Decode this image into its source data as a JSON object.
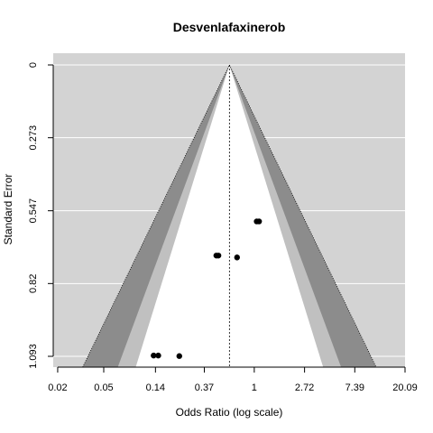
{
  "chart_data": {
    "type": "scatter",
    "title": "Desvenlafaxinerob",
    "xlabel": "Odds Ratio (log scale)",
    "ylabel": "Standard Error",
    "x_scale": "log",
    "x_ticks": [
      0.02,
      0.05,
      0.14,
      0.37,
      1,
      2.72,
      7.39,
      20.09
    ],
    "x_tick_labels": [
      "0.02",
      "0.05",
      "0.14",
      "0.37",
      "1",
      "2.72",
      "7.39",
      "20.09"
    ],
    "y_ticks": [
      0,
      0.273,
      0.547,
      0.82,
      1.093
    ],
    "y_tick_labels": [
      "0",
      "0.273",
      "0.547",
      "0.82",
      "1.093"
    ],
    "y_reversed": true,
    "pooled_estimate": 0.61,
    "contour_levels": [
      "0.90",
      "0.95",
      "0.99"
    ],
    "colors": {
      "panel": "#d3d3d3",
      "contour_90": "#ffffff",
      "contour_95": "#c0c0c0",
      "contour_99": "#8c8c8c",
      "grid": "#ffffff",
      "points": "#000000"
    },
    "points": [
      {
        "or": 1.05,
        "se": 0.587
      },
      {
        "or": 1.1,
        "se": 0.587
      },
      {
        "or": 0.47,
        "se": 0.715
      },
      {
        "or": 0.49,
        "se": 0.715
      },
      {
        "or": 0.71,
        "se": 0.722
      },
      {
        "or": 0.135,
        "se": 1.09
      },
      {
        "or": 0.148,
        "se": 1.09
      },
      {
        "or": 0.225,
        "se": 1.092
      }
    ]
  }
}
